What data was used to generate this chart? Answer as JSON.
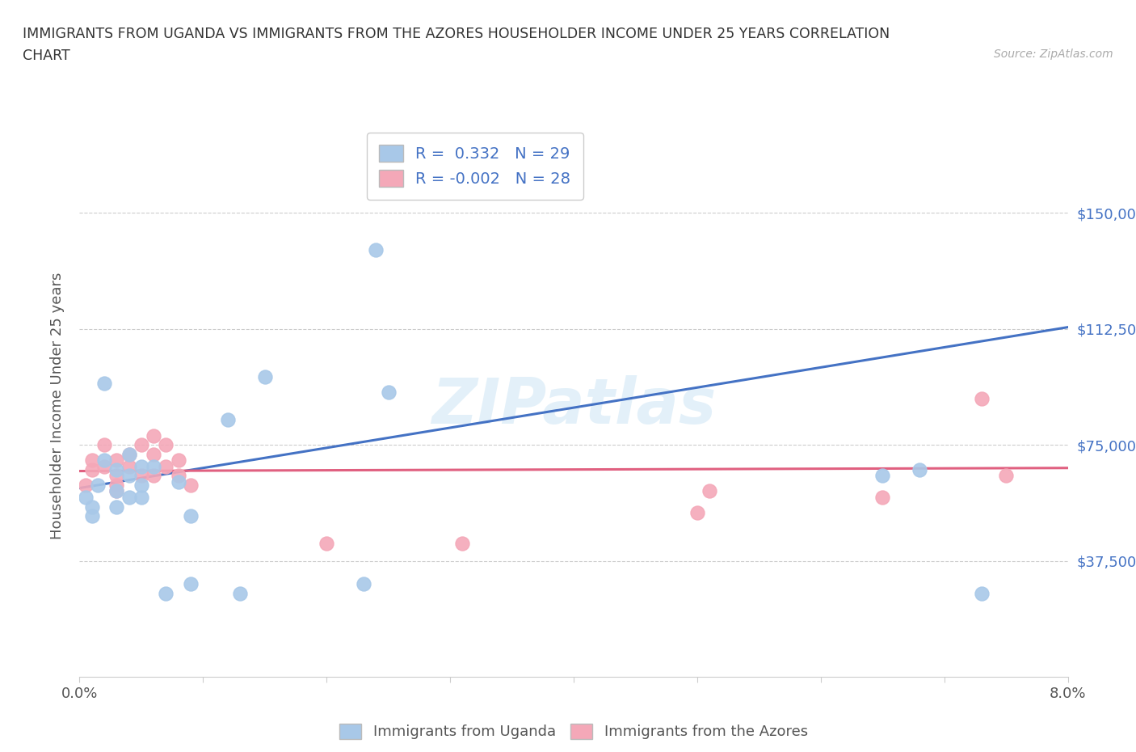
{
  "title_line1": "IMMIGRANTS FROM UGANDA VS IMMIGRANTS FROM THE AZORES HOUSEHOLDER INCOME UNDER 25 YEARS CORRELATION",
  "title_line2": "CHART",
  "source": "Source: ZipAtlas.com",
  "ylabel": "Householder Income Under 25 years",
  "xlim": [
    0.0,
    0.08
  ],
  "ylim": [
    0,
    175000
  ],
  "xticks": [
    0.0,
    0.01,
    0.02,
    0.03,
    0.04,
    0.05,
    0.06,
    0.07,
    0.08
  ],
  "xtick_labels": [
    "0.0%",
    "",
    "",
    "",
    "",
    "",
    "",
    "",
    "8.0%"
  ],
  "ytick_labels": [
    "$37,500",
    "$75,000",
    "$112,500",
    "$150,000"
  ],
  "ytick_values": [
    37500,
    75000,
    112500,
    150000
  ],
  "r_uganda": 0.332,
  "n_uganda": 29,
  "r_azores": -0.002,
  "n_azores": 28,
  "uganda_color": "#a8c8e8",
  "azores_color": "#f4a8b8",
  "uganda_line_color": "#4472c4",
  "azores_line_color": "#e06080",
  "watermark": "ZIPatlas",
  "uganda_x": [
    0.0005,
    0.001,
    0.001,
    0.0015,
    0.002,
    0.002,
    0.003,
    0.003,
    0.003,
    0.004,
    0.004,
    0.004,
    0.005,
    0.005,
    0.005,
    0.006,
    0.007,
    0.008,
    0.009,
    0.009,
    0.012,
    0.013,
    0.015,
    0.023,
    0.024,
    0.025,
    0.065,
    0.068,
    0.073
  ],
  "uganda_y": [
    58000,
    55000,
    52000,
    62000,
    95000,
    70000,
    67000,
    60000,
    55000,
    72000,
    65000,
    58000,
    68000,
    62000,
    58000,
    68000,
    27000,
    63000,
    52000,
    30000,
    83000,
    27000,
    97000,
    30000,
    138000,
    92000,
    65000,
    67000,
    27000
  ],
  "azores_x": [
    0.0005,
    0.001,
    0.001,
    0.002,
    0.002,
    0.003,
    0.003,
    0.003,
    0.003,
    0.004,
    0.004,
    0.005,
    0.005,
    0.006,
    0.006,
    0.006,
    0.007,
    0.007,
    0.008,
    0.008,
    0.009,
    0.02,
    0.031,
    0.05,
    0.051,
    0.065,
    0.073,
    0.075
  ],
  "azores_y": [
    62000,
    70000,
    67000,
    75000,
    68000,
    65000,
    62000,
    70000,
    60000,
    72000,
    68000,
    75000,
    65000,
    78000,
    72000,
    65000,
    75000,
    68000,
    70000,
    65000,
    62000,
    43000,
    43000,
    53000,
    60000,
    58000,
    90000,
    65000
  ],
  "uganda_line_x": [
    0.0,
    0.08
  ],
  "uganda_line_y": [
    61000,
    113000
  ],
  "azores_line_x": [
    0.0,
    0.08
  ],
  "azores_line_y": [
    66500,
    67500
  ]
}
